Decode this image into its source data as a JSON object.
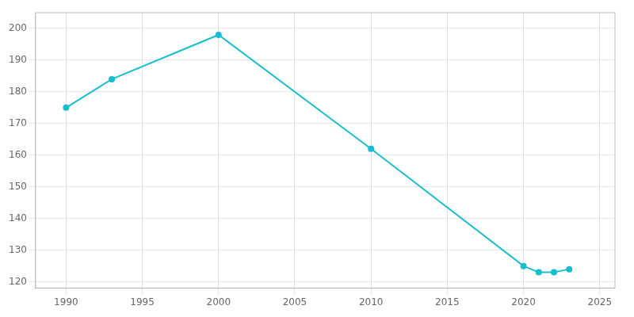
{
  "chart_data": {
    "type": "line",
    "x": [
      1990,
      1993,
      2000,
      2010,
      2020,
      2021,
      2022,
      2023
    ],
    "values": [
      175,
      184,
      198,
      162,
      125,
      123,
      123,
      124
    ],
    "color": "#17BECF",
    "marker": "circle",
    "xlim": [
      1988,
      2026
    ],
    "xticks": [
      1990,
      1995,
      2000,
      2005,
      2010,
      2015,
      2020,
      2025
    ],
    "ylim": [
      118,
      205
    ],
    "yticks": [
      120,
      130,
      140,
      150,
      160,
      170,
      180,
      190,
      200
    ],
    "grid": true
  }
}
